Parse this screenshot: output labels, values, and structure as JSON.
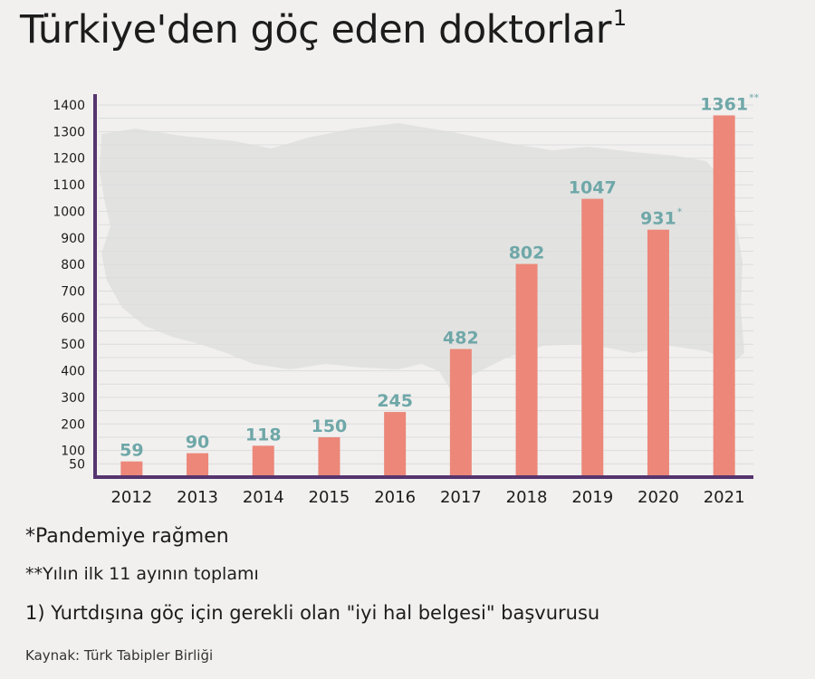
{
  "header": {
    "title": "Türkiye'den göç eden doktorlar",
    "title_mark": "1"
  },
  "notes": {
    "pandemic": "*Pandemiye rağmen",
    "partial_year": "**Yılın ilk 11 ayının toplamı",
    "definition": "1) Yurtdışına göç için gerekli olan \"iyi hal belgesi\" başvurusu",
    "source": "Kaynak: Türk Tabipler Birliği"
  },
  "colors": {
    "bar": "#ec8779",
    "label": "#6fa7a8",
    "axis": "#56356f",
    "grid": "#dcdcdc",
    "background": "#f1f0ef",
    "map": "#e2e3e1"
  },
  "chart_data": {
    "type": "bar",
    "categories": [
      "2012",
      "2013",
      "2014",
      "2015",
      "2016",
      "2017",
      "2018",
      "2019",
      "2020",
      "2021"
    ],
    "values": [
      59,
      90,
      118,
      150,
      245,
      482,
      802,
      1047,
      931,
      1361
    ],
    "value_labels": [
      "59",
      "90",
      "118",
      "150",
      "245",
      "482",
      "802",
      "1047",
      "931",
      "1361"
    ],
    "value_marks": [
      "",
      "",
      "",
      "",
      "",
      "",
      "",
      "",
      "*",
      "**"
    ],
    "yticks": [
      50,
      100,
      200,
      300,
      400,
      500,
      600,
      700,
      800,
      900,
      1000,
      1100,
      1200,
      1300,
      1400
    ],
    "ylim": [
      0,
      1400
    ],
    "title": "Türkiye'den göç eden doktorlar",
    "xlabel": "",
    "ylabel": "",
    "grid": true,
    "legend": "none"
  }
}
